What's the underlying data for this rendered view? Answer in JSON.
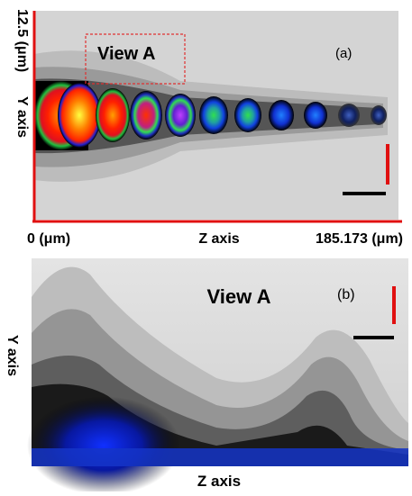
{
  "panel_a": {
    "y_label_top": "12.5 (μm)",
    "y_label": "Y axis",
    "view_label": "View A",
    "tag": "(a)",
    "z_start": "0 (μm)",
    "z_label": "Z axis",
    "z_end": "185.173 (μm)"
  },
  "panel_b": {
    "view_label": "View A",
    "tag": "(b)",
    "y_label": "Y axis",
    "z_label": "Z axis"
  }
}
